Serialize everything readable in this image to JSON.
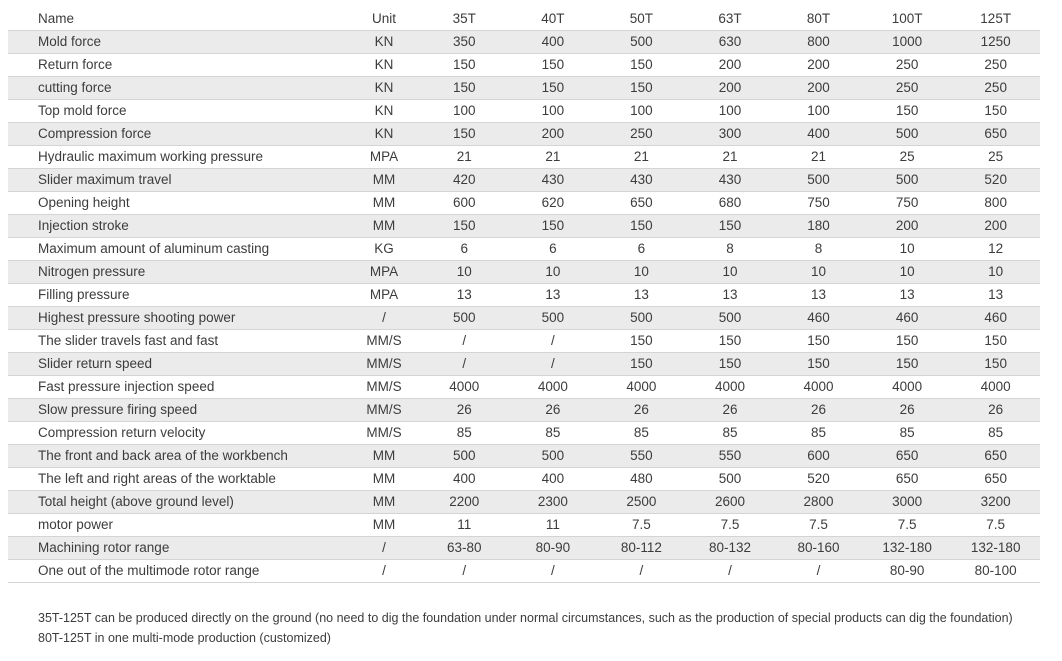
{
  "style": {
    "stripe_color": "#ebebeb",
    "border_color": "#d4d4d4",
    "text_color": "#3c3c3c",
    "background_color": "#ffffff"
  },
  "chart_data": {
    "type": "table",
    "title": "",
    "columns": [
      "Name",
      "Unit",
      "35T",
      "40T",
      "50T",
      "63T",
      "80T",
      "100T",
      "125T"
    ],
    "rows": [
      {
        "name": "Mold force",
        "unit": "KN",
        "values": [
          "350",
          "400",
          "500",
          "630",
          "800",
          "1000",
          "1250"
        ]
      },
      {
        "name": "Return force",
        "unit": "KN",
        "values": [
          "150",
          "150",
          "150",
          "200",
          "200",
          "250",
          "250"
        ]
      },
      {
        "name": "cutting force",
        "unit": "KN",
        "values": [
          "150",
          "150",
          "150",
          "200",
          "200",
          "250",
          "250"
        ]
      },
      {
        "name": "Top mold force",
        "unit": "KN",
        "values": [
          "100",
          "100",
          "100",
          "100",
          "100",
          "150",
          "150"
        ]
      },
      {
        "name": "Compression force",
        "unit": "KN",
        "values": [
          "150",
          "200",
          "250",
          "300",
          "400",
          "500",
          "650"
        ]
      },
      {
        "name": "Hydraulic maximum working pressure",
        "unit": "MPA",
        "values": [
          "21",
          "21",
          "21",
          "21",
          "21",
          "25",
          "25"
        ]
      },
      {
        "name": "Slider maximum travel",
        "unit": "MM",
        "values": [
          "420",
          "430",
          "430",
          "430",
          "500",
          "500",
          "520"
        ]
      },
      {
        "name": "Opening height",
        "unit": "MM",
        "values": [
          "600",
          "620",
          "650",
          "680",
          "750",
          "750",
          "800"
        ]
      },
      {
        "name": "Injection stroke",
        "unit": "MM",
        "values": [
          "150",
          "150",
          "150",
          "150",
          "180",
          "200",
          "200"
        ]
      },
      {
        "name": "Maximum amount of aluminum casting",
        "unit": "KG",
        "values": [
          "6",
          "6",
          "6",
          "8",
          "8",
          "10",
          "12"
        ]
      },
      {
        "name": "Nitrogen pressure",
        "unit": "MPA",
        "values": [
          "10",
          "10",
          "10",
          "10",
          "10",
          "10",
          "10"
        ]
      },
      {
        "name": "Filling pressure",
        "unit": "MPA",
        "values": [
          "13",
          "13",
          "13",
          "13",
          "13",
          "13",
          "13"
        ]
      },
      {
        "name": "Highest pressure shooting power",
        "unit": "/",
        "values": [
          "500",
          "500",
          "500",
          "500",
          "460",
          "460",
          "460"
        ]
      },
      {
        "name": "The slider travels fast and fast",
        "unit": "MM/S",
        "values": [
          "/",
          "/",
          "150",
          "150",
          "150",
          "150",
          "150"
        ]
      },
      {
        "name": "Slider return speed",
        "unit": "MM/S",
        "values": [
          "/",
          "/",
          "150",
          "150",
          "150",
          "150",
          "150"
        ]
      },
      {
        "name": "Fast pressure injection speed",
        "unit": "MM/S",
        "values": [
          "4000",
          "4000",
          "4000",
          "4000",
          "4000",
          "4000",
          "4000"
        ]
      },
      {
        "name": "Slow pressure firing speed",
        "unit": "MM/S",
        "values": [
          "26",
          "26",
          "26",
          "26",
          "26",
          "26",
          "26"
        ]
      },
      {
        "name": "Compression return velocity",
        "unit": "MM/S",
        "values": [
          "85",
          "85",
          "85",
          "85",
          "85",
          "85",
          "85"
        ]
      },
      {
        "name": "The front and back area of the workbench",
        "unit": "MM",
        "values": [
          "500",
          "500",
          "550",
          "550",
          "600",
          "650",
          "650"
        ]
      },
      {
        "name": "The left and right areas of the worktable",
        "unit": "MM",
        "values": [
          "400",
          "400",
          "480",
          "500",
          "520",
          "650",
          "650"
        ]
      },
      {
        "name": "Total height (above ground level)",
        "unit": "MM",
        "values": [
          "2200",
          "2300",
          "2500",
          "2600",
          "2800",
          "3000",
          "3200"
        ]
      },
      {
        "name": "motor power",
        "unit": "MM",
        "values": [
          "11",
          "11",
          "7.5",
          "7.5",
          "7.5",
          "7.5",
          "7.5"
        ]
      },
      {
        "name": "Machining rotor range",
        "unit": "/",
        "values": [
          "63-80",
          "80-90",
          "80-112",
          "80-132",
          "80-160",
          "132-180",
          "132-180"
        ]
      },
      {
        "name": "One out of the multimode rotor range",
        "unit": "/",
        "values": [
          "/",
          "/",
          "/",
          "/",
          "/",
          "80-90",
          "80-100"
        ]
      }
    ],
    "notes": [
      "35T-125T can be produced directly on the ground (no need to dig the foundation under normal circumstances, such as the production of special products can dig the foundation)",
      "80T-125T in one multi-mode production (customized)"
    ],
    "layout": {
      "striped_rows": "odd data rows shaded",
      "grid": "horizontal row separators only, no vertical lines",
      "legend_position": "none"
    }
  }
}
